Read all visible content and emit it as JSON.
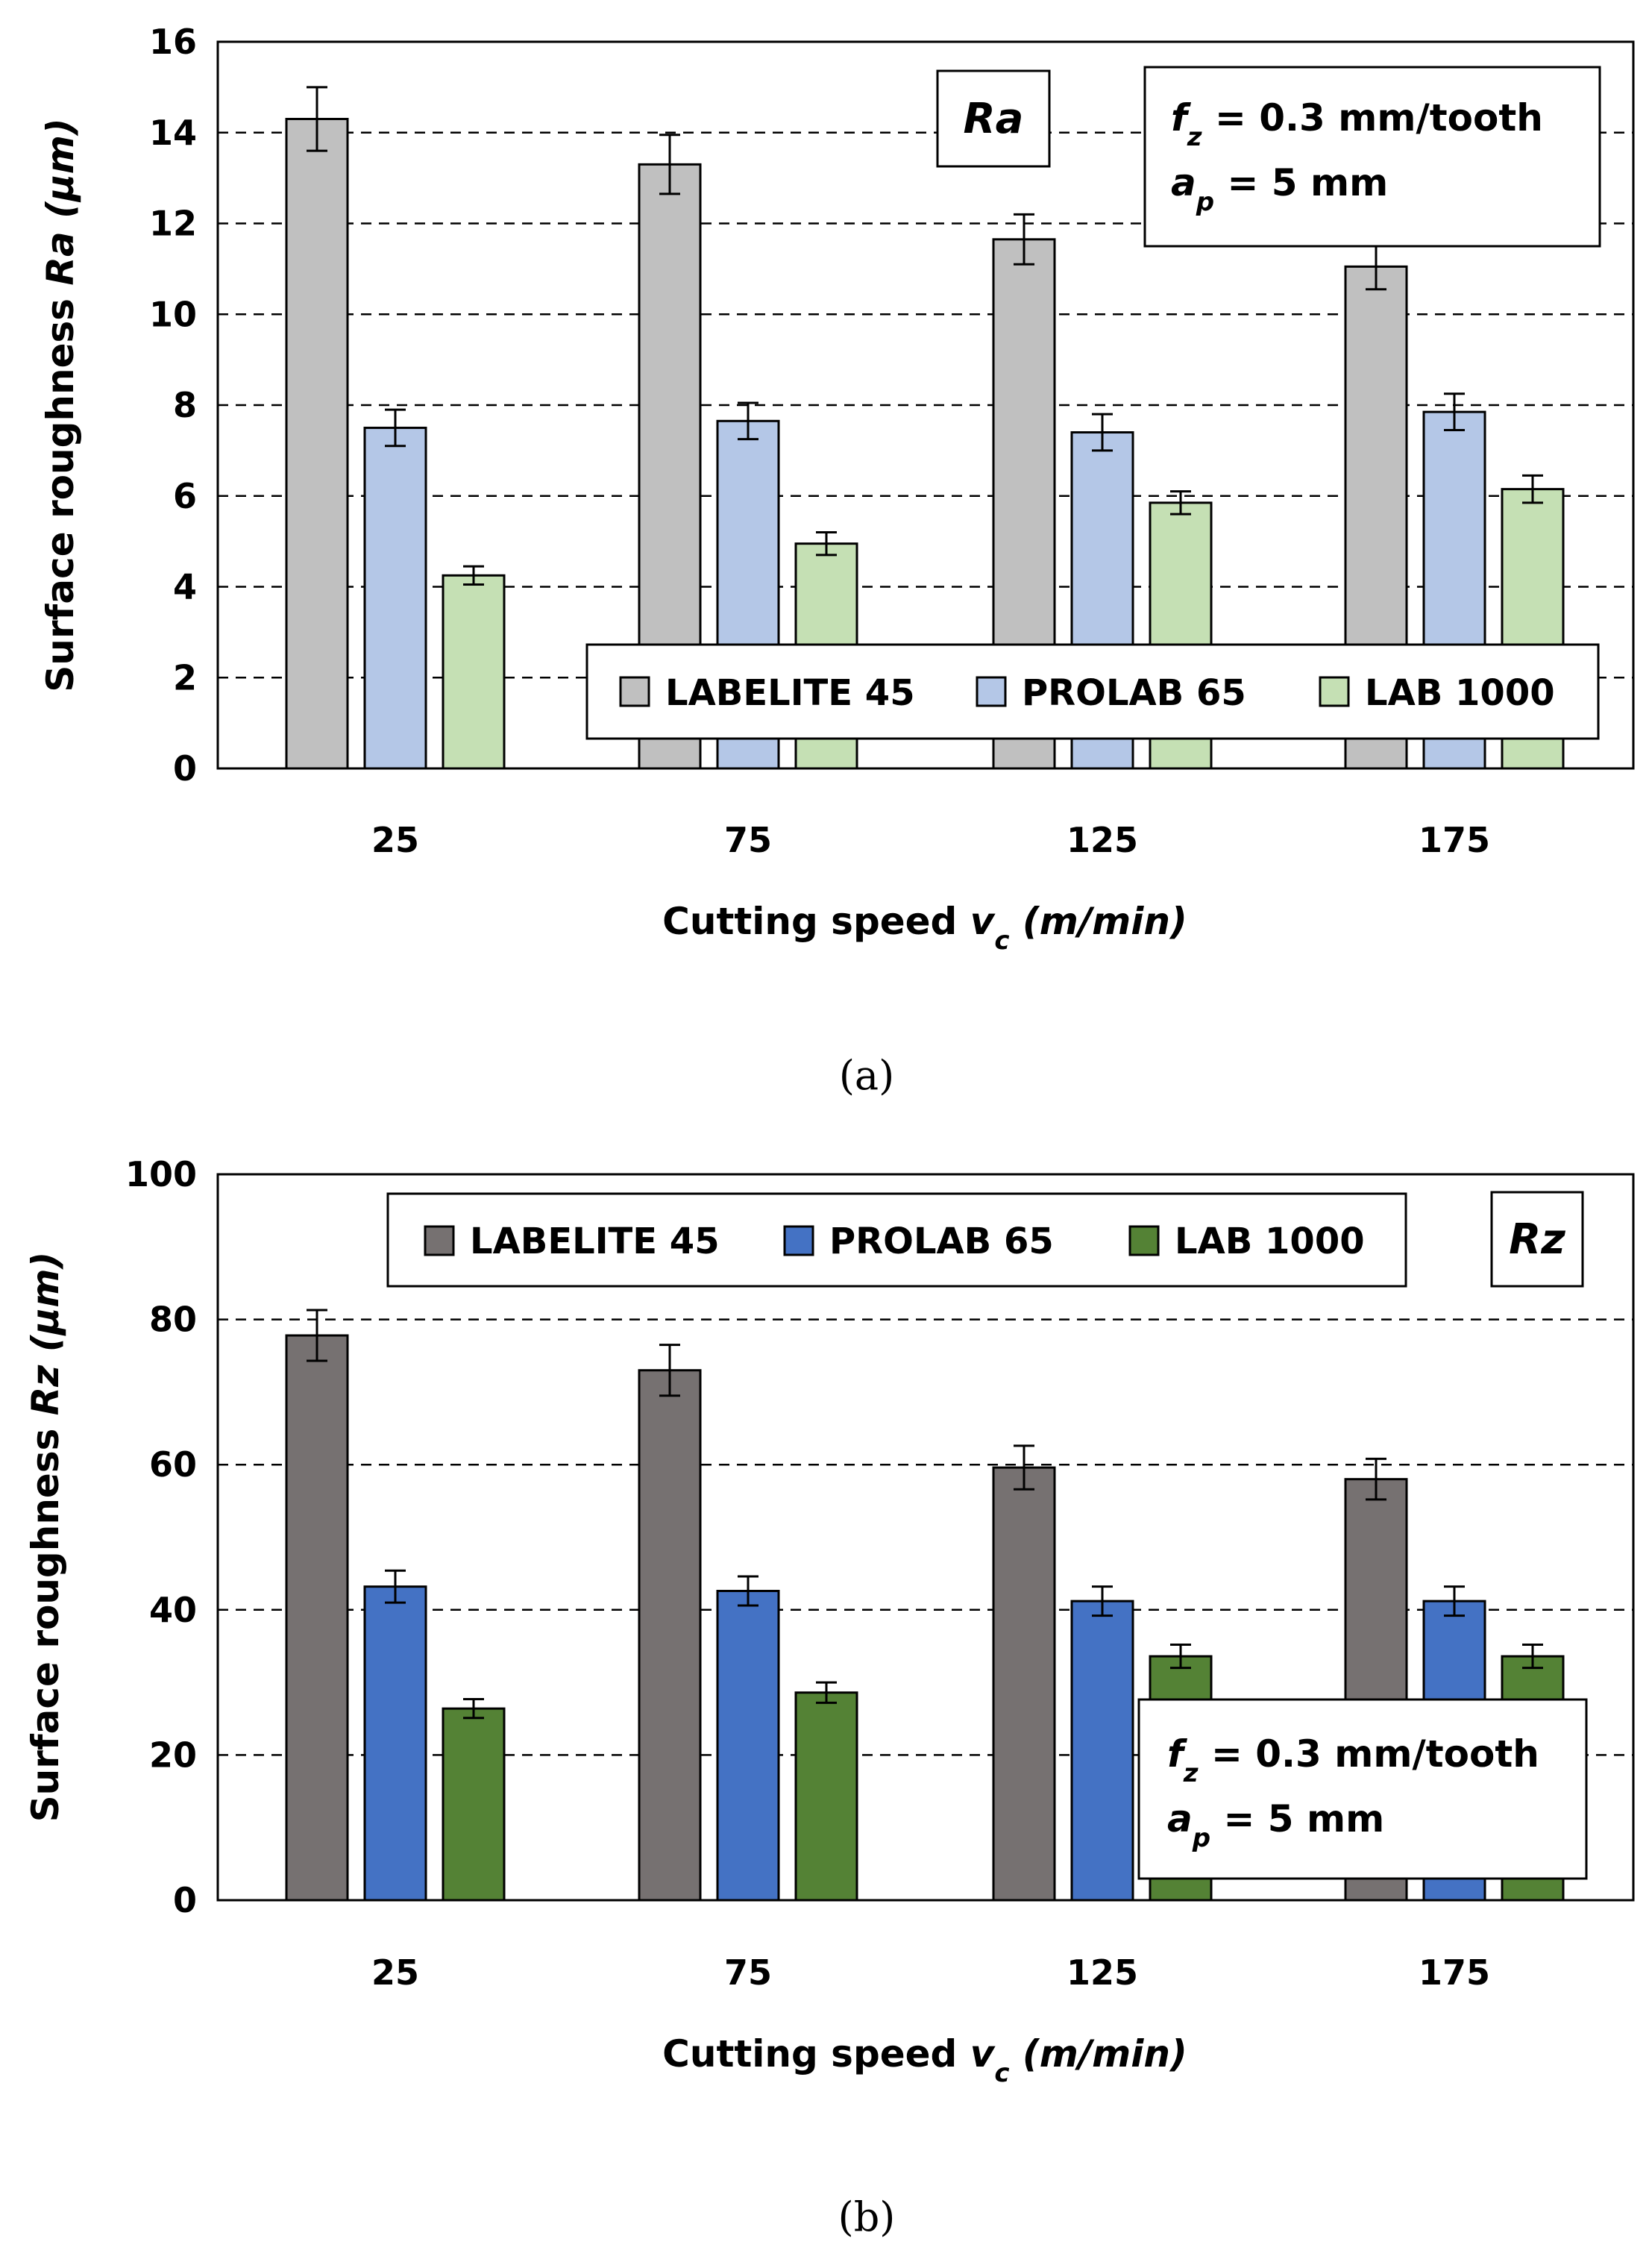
{
  "chart_data": [
    {
      "type": "bar",
      "panel_label": "Ra",
      "caption": "(a)",
      "categories": [
        "25",
        "75",
        "125",
        "175"
      ],
      "xlabel_prefix": "Cutting speed ",
      "xlabel_var": "v",
      "xlabel_sub": "c",
      "xlabel_unit": " (m/min)",
      "ylabel_prefix": "Surface roughness ",
      "ylabel_var": "Ra",
      "ylabel_unit": " (µm)",
      "ylim": [
        0,
        16
      ],
      "yticks": [
        "0",
        "2",
        "4",
        "6",
        "8",
        "10",
        "12",
        "14",
        "16"
      ],
      "grid": true,
      "legend_position": "bottom-right",
      "series": [
        {
          "name": "LABELITE 45",
          "color": "#c0c0c0",
          "values": [
            14.3,
            13.3,
            11.65,
            11.05
          ],
          "errors": [
            0.7,
            0.65,
            0.55,
            0.5
          ]
        },
        {
          "name": "PROLAB 65",
          "color": "#b4c7e7",
          "values": [
            7.5,
            7.65,
            7.4,
            7.85
          ],
          "errors": [
            0.4,
            0.4,
            0.4,
            0.4
          ]
        },
        {
          "name": "LAB 1000",
          "color": "#c5e0b4",
          "values": [
            4.25,
            4.95,
            5.85,
            6.15
          ],
          "errors": [
            0.2,
            0.25,
            0.25,
            0.3
          ]
        }
      ],
      "annotation": {
        "f_var": "f",
        "f_sub": "z",
        "f_text": " = 0.3 mm/tooth",
        "a_var": "a",
        "a_sub": "p",
        "a_text": " = 5 mm",
        "position": "top-right"
      }
    },
    {
      "type": "bar",
      "panel_label": "Rz",
      "caption": "(b)",
      "categories": [
        "25",
        "75",
        "125",
        "175"
      ],
      "xlabel_prefix": "Cutting speed ",
      "xlabel_var": "v",
      "xlabel_sub": "c",
      "xlabel_unit": " (m/min)",
      "ylabel_prefix": "Surface roughness ",
      "ylabel_var": "Rz",
      "ylabel_unit": " (µm)",
      "ylim": [
        0,
        100
      ],
      "yticks": [
        "0",
        "20",
        "40",
        "60",
        "80",
        "100"
      ],
      "grid": true,
      "legend_position": "top",
      "series": [
        {
          "name": "LABELITE 45",
          "color": "#767171",
          "values": [
            77.8,
            73.0,
            59.6,
            58.0
          ],
          "errors": [
            3.5,
            3.5,
            3.0,
            2.8
          ]
        },
        {
          "name": "PROLAB 65",
          "color": "#4472c4",
          "values": [
            43.2,
            42.6,
            41.2,
            41.2
          ],
          "errors": [
            2.2,
            2.0,
            2.0,
            2.0
          ]
        },
        {
          "name": "LAB 1000",
          "color": "#548235",
          "values": [
            26.4,
            28.6,
            33.6,
            33.6
          ],
          "errors": [
            1.3,
            1.4,
            1.6,
            1.6
          ]
        }
      ],
      "annotation": {
        "f_var": "f",
        "f_sub": "z",
        "f_text": " = 0.3 mm/tooth",
        "a_var": "a",
        "a_sub": "p",
        "a_text": " = 5 mm",
        "position": "bottom-right"
      }
    }
  ]
}
